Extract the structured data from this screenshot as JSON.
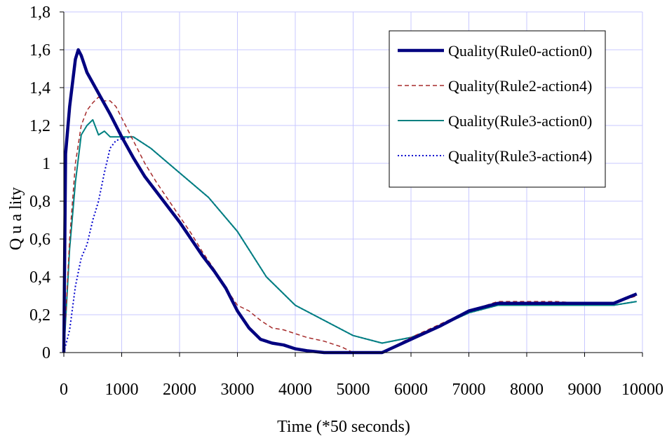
{
  "chart_data": {
    "type": "line",
    "title": "",
    "xlabel": "Time (*50 seconds)",
    "ylabel": "Q u a lity",
    "xlim": [
      0,
      10000
    ],
    "ylim": [
      0,
      1.8
    ],
    "x_ticks": [
      "0",
      "1000",
      "2000",
      "3000",
      "4000",
      "5000",
      "6000",
      "7000",
      "8000",
      "9000",
      "10000"
    ],
    "y_ticks": [
      "0",
      "0,2",
      "0,4",
      "0,6",
      "0,8",
      "1",
      "1,2",
      "1,4",
      "1,6",
      "1,8"
    ],
    "grid": true,
    "legend_position": "top-right",
    "series": [
      {
        "name": "Quality(Rule0-action0)",
        "color": "#000080",
        "style": "solid-thick",
        "points": [
          [
            0,
            0
          ],
          [
            30,
            1.05
          ],
          [
            100,
            1.3
          ],
          [
            200,
            1.55
          ],
          [
            250,
            1.6
          ],
          [
            300,
            1.57
          ],
          [
            400,
            1.48
          ],
          [
            600,
            1.37
          ],
          [
            800,
            1.26
          ],
          [
            1000,
            1.14
          ],
          [
            1200,
            1.03
          ],
          [
            1400,
            0.93
          ],
          [
            1600,
            0.85
          ],
          [
            1800,
            0.77
          ],
          [
            2000,
            0.69
          ],
          [
            2200,
            0.6
          ],
          [
            2400,
            0.51
          ],
          [
            2600,
            0.43
          ],
          [
            2800,
            0.34
          ],
          [
            3000,
            0.22
          ],
          [
            3200,
            0.13
          ],
          [
            3400,
            0.07
          ],
          [
            3600,
            0.05
          ],
          [
            3800,
            0.04
          ],
          [
            4000,
            0.02
          ],
          [
            4200,
            0.01
          ],
          [
            4500,
            0
          ],
          [
            5000,
            0
          ],
          [
            5500,
            0
          ],
          [
            6000,
            0.07
          ],
          [
            6500,
            0.14
          ],
          [
            7000,
            0.22
          ],
          [
            7500,
            0.26
          ],
          [
            8000,
            0.26
          ],
          [
            8500,
            0.26
          ],
          [
            9000,
            0.26
          ],
          [
            9500,
            0.26
          ],
          [
            9900,
            0.31
          ]
        ]
      },
      {
        "name": "Quality(Rule2-action4)",
        "color": "#a52a2a",
        "style": "dashed",
        "points": [
          [
            0,
            0
          ],
          [
            100,
            0.6
          ],
          [
            200,
            1.0
          ],
          [
            300,
            1.2
          ],
          [
            400,
            1.28
          ],
          [
            500,
            1.32
          ],
          [
            600,
            1.35
          ],
          [
            700,
            1.33
          ],
          [
            800,
            1.33
          ],
          [
            900,
            1.3
          ],
          [
            1000,
            1.24
          ],
          [
            1200,
            1.12
          ],
          [
            1400,
            1.0
          ],
          [
            1600,
            0.9
          ],
          [
            1800,
            0.81
          ],
          [
            2000,
            0.72
          ],
          [
            2200,
            0.63
          ],
          [
            2400,
            0.53
          ],
          [
            2600,
            0.44
          ],
          [
            2800,
            0.34
          ],
          [
            3000,
            0.25
          ],
          [
            3200,
            0.22
          ],
          [
            3400,
            0.17
          ],
          [
            3600,
            0.13
          ],
          [
            3800,
            0.12
          ],
          [
            4000,
            0.1
          ],
          [
            4200,
            0.08
          ],
          [
            4500,
            0.06
          ],
          [
            4800,
            0.03
          ],
          [
            5000,
            0
          ],
          [
            5500,
            0
          ],
          [
            6000,
            0.08
          ],
          [
            6500,
            0.15
          ],
          [
            7000,
            0.22
          ],
          [
            7500,
            0.27
          ],
          [
            8000,
            0.27
          ],
          [
            8500,
            0.27
          ],
          [
            9000,
            0.26
          ],
          [
            9500,
            0.26
          ],
          [
            9900,
            0.3
          ]
        ]
      },
      {
        "name": "Quality(Rule3-action0)",
        "color": "#008080",
        "style": "solid",
        "points": [
          [
            0,
            0
          ],
          [
            100,
            0.55
          ],
          [
            200,
            0.9
          ],
          [
            300,
            1.15
          ],
          [
            400,
            1.2
          ],
          [
            500,
            1.23
          ],
          [
            600,
            1.15
          ],
          [
            700,
            1.17
          ],
          [
            800,
            1.14
          ],
          [
            900,
            1.14
          ],
          [
            1000,
            1.14
          ],
          [
            1200,
            1.14
          ],
          [
            1500,
            1.08
          ],
          [
            2000,
            0.95
          ],
          [
            2500,
            0.82
          ],
          [
            3000,
            0.64
          ],
          [
            3500,
            0.4
          ],
          [
            4000,
            0.25
          ],
          [
            4500,
            0.17
          ],
          [
            5000,
            0.09
          ],
          [
            5500,
            0.05
          ],
          [
            6000,
            0.08
          ],
          [
            6500,
            0.14
          ],
          [
            7000,
            0.21
          ],
          [
            7500,
            0.25
          ],
          [
            8000,
            0.25
          ],
          [
            8500,
            0.25
          ],
          [
            9000,
            0.25
          ],
          [
            9500,
            0.25
          ],
          [
            9900,
            0.27
          ]
        ]
      },
      {
        "name": "Quality(Rule3-action4)",
        "color": "#0000cd",
        "style": "dotted",
        "points": [
          [
            0,
            0
          ],
          [
            100,
            0.12
          ],
          [
            200,
            0.35
          ],
          [
            300,
            0.5
          ],
          [
            400,
            0.57
          ],
          [
            500,
            0.7
          ],
          [
            600,
            0.8
          ],
          [
            700,
            0.95
          ],
          [
            800,
            1.08
          ],
          [
            900,
            1.12
          ],
          [
            1000,
            1.13
          ],
          [
            1200,
            1.14
          ],
          [
            1500,
            1.08
          ],
          [
            2000,
            0.95
          ],
          [
            2500,
            0.82
          ],
          [
            3000,
            0.64
          ],
          [
            3500,
            0.4
          ],
          [
            4000,
            0.25
          ],
          [
            4500,
            0.17
          ],
          [
            5000,
            0.09
          ],
          [
            5500,
            0.05
          ],
          [
            6000,
            0.08
          ],
          [
            6500,
            0.14
          ],
          [
            7000,
            0.21
          ],
          [
            7500,
            0.25
          ],
          [
            8000,
            0.25
          ],
          [
            8500,
            0.25
          ],
          [
            9000,
            0.25
          ],
          [
            9500,
            0.25
          ],
          [
            9900,
            0.27
          ]
        ]
      }
    ]
  }
}
